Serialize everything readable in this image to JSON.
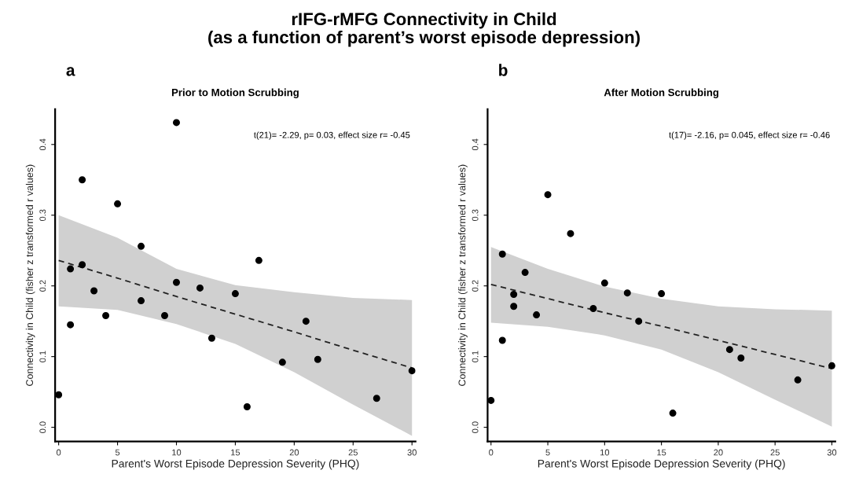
{
  "chart_data": [
    {
      "type": "scatter",
      "title": "rIFG-rMFG Connectivity in Child\n(as a function of parent’s worst episode depression)",
      "subtitle": "Prior to Motion Scrubbing",
      "xlabel": "Parent's Worst Episode Depression Severity (PHQ)",
      "ylabel": "Connectivity in Child (fisher z transformed r values)",
      "annotations": [
        "a",
        "t(21)= -2.29, p= 0.03, effect size r= -0.45"
      ],
      "grid": false,
      "xlim": [
        -0.3,
        30.3
      ],
      "ylim": [
        -0.02,
        0.45
      ],
      "xticks": [
        0,
        5,
        10,
        15,
        20,
        25,
        30
      ],
      "yticks": [
        {
          "value": 0,
          "label": "0.0"
        },
        {
          "value": 0.1,
          "label": "0.1"
        },
        {
          "value": 0.2,
          "label": "0.2"
        },
        {
          "value": 0.3,
          "label": "0.3"
        },
        {
          "value": 0.4,
          "label": "0.4"
        }
      ],
      "series": [
        {
          "marker": "circle",
          "color": "#000000",
          "x": [
            0,
            1,
            1,
            2,
            2,
            3,
            4,
            5,
            7,
            7,
            9,
            10,
            10,
            12,
            13,
            15,
            16,
            17,
            19,
            21,
            22,
            27,
            30
          ],
          "values": [
            0.046,
            0.224,
            0.145,
            0.35,
            0.23,
            0.193,
            0.158,
            0.316,
            0.256,
            0.179,
            0.158,
            0.431,
            0.205,
            0.197,
            0.126,
            0.189,
            0.029,
            0.236,
            0.092,
            0.15,
            0.096,
            0.041,
            0.08
          ]
        },
        {
          "type": "line",
          "color": "#222222",
          "line_style": "dashed",
          "x": [
            0,
            5,
            10,
            15,
            20,
            25,
            30
          ],
          "values": [
            0.236,
            0.211,
            0.185,
            0.16,
            0.135,
            0.109,
            0.084
          ],
          "lower": [
            0.171,
            0.166,
            0.146,
            0.118,
            0.078,
            0.032,
            -0.012
          ],
          "upper": [
            0.3,
            0.268,
            0.224,
            0.201,
            0.191,
            0.183,
            0.18
          ]
        }
      ]
    },
    {
      "type": "scatter",
      "subtitle": "After Motion Scrubbing",
      "xlabel": "Parent's Worst Episode Depression Severity (PHQ)",
      "ylabel": "Connectivity in Child (fisher z transformed r values)",
      "annotations": [
        "b",
        "t(17)= -2.16, p= 0.045, effect size r= -0.46"
      ],
      "grid": false,
      "xlim": [
        -0.3,
        30.3
      ],
      "ylim": [
        -0.02,
        0.45
      ],
      "xticks": [
        0,
        5,
        10,
        15,
        20,
        25,
        30
      ],
      "yticks": [
        {
          "value": 0,
          "label": "0.0"
        },
        {
          "value": 0.1,
          "label": "0.1"
        },
        {
          "value": 0.2,
          "label": "0.2"
        },
        {
          "value": 0.3,
          "label": "0.3"
        },
        {
          "value": 0.4,
          "label": "0.4"
        }
      ],
      "series": [
        {
          "marker": "circle",
          "color": "#000000",
          "x": [
            0,
            1,
            1,
            2,
            2,
            3,
            4,
            5,
            7,
            9,
            10,
            12,
            13,
            15,
            16,
            21,
            22,
            27,
            30
          ],
          "values": [
            0.038,
            0.245,
            0.123,
            0.188,
            0.171,
            0.219,
            0.159,
            0.329,
            0.274,
            0.168,
            0.204,
            0.19,
            0.15,
            0.189,
            0.02,
            0.11,
            0.098,
            0.067,
            0.087
          ]
        },
        {
          "type": "line",
          "color": "#222222",
          "line_style": "dashed",
          "x": [
            0,
            5,
            10,
            15,
            20,
            25,
            30
          ],
          "values": [
            0.202,
            0.182,
            0.162,
            0.143,
            0.123,
            0.103,
            0.083
          ],
          "lower": [
            0.148,
            0.142,
            0.13,
            0.11,
            0.078,
            0.039,
            0.001
          ],
          "upper": [
            0.255,
            0.224,
            0.199,
            0.182,
            0.171,
            0.167,
            0.165
          ]
        }
      ]
    }
  ]
}
